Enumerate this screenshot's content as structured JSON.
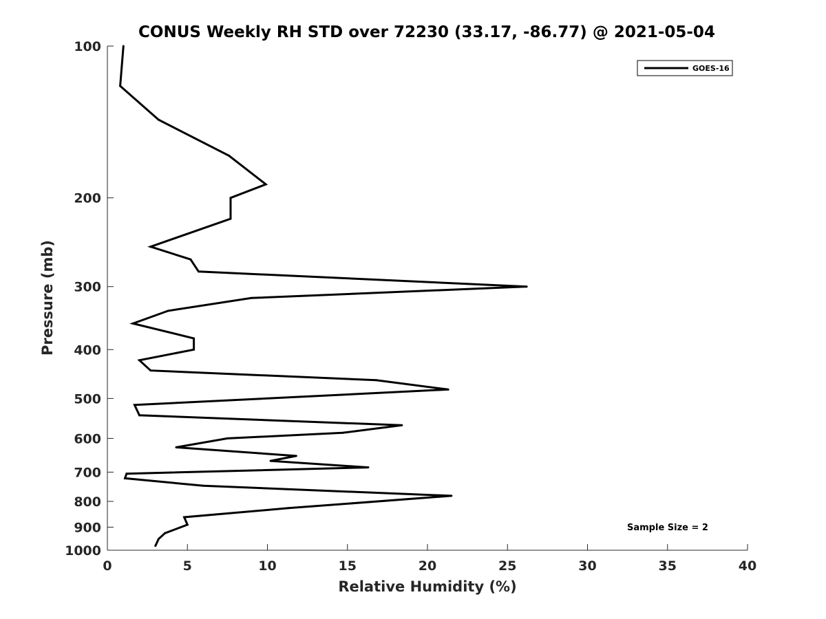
{
  "chart_data": {
    "type": "line",
    "title": "CONUS Weekly RH STD over 72230 (33.17, -86.77) @ 2021-05-04",
    "xlabel": "Relative Humidity (%)",
    "ylabel": "Pressure (mb)",
    "xlim": [
      0,
      40
    ],
    "ylim": [
      100,
      1000
    ],
    "yscale": "log",
    "yreversed": true,
    "xticks": [
      0,
      5,
      10,
      15,
      20,
      25,
      30,
      35,
      40
    ],
    "yticks": [
      100,
      200,
      300,
      400,
      500,
      600,
      700,
      800,
      900,
      1000
    ],
    "grid": false,
    "legend": {
      "position": "top-right",
      "entries": [
        "GOES-16"
      ]
    },
    "annotation": "Sample Size = 2",
    "series": [
      {
        "name": "GOES-16",
        "color": "#000000",
        "points": [
          {
            "x": 1.0,
            "p": 100
          },
          {
            "x": 0.8,
            "p": 120
          },
          {
            "x": 3.2,
            "p": 140
          },
          {
            "x": 7.6,
            "p": 165
          },
          {
            "x": 9.9,
            "p": 188
          },
          {
            "x": 7.7,
            "p": 200
          },
          {
            "x": 7.7,
            "p": 220
          },
          {
            "x": 2.7,
            "p": 250
          },
          {
            "x": 5.2,
            "p": 265
          },
          {
            "x": 5.7,
            "p": 280
          },
          {
            "x": 26.2,
            "p": 300
          },
          {
            "x": 9.0,
            "p": 316
          },
          {
            "x": 3.8,
            "p": 335
          },
          {
            "x": 1.6,
            "p": 355
          },
          {
            "x": 5.4,
            "p": 380
          },
          {
            "x": 5.4,
            "p": 400
          },
          {
            "x": 2.0,
            "p": 420
          },
          {
            "x": 2.7,
            "p": 440
          },
          {
            "x": 16.8,
            "p": 460
          },
          {
            "x": 21.3,
            "p": 480
          },
          {
            "x": 1.7,
            "p": 515
          },
          {
            "x": 2.0,
            "p": 540
          },
          {
            "x": 18.4,
            "p": 565
          },
          {
            "x": 14.7,
            "p": 585
          },
          {
            "x": 7.5,
            "p": 600
          },
          {
            "x": 4.3,
            "p": 625
          },
          {
            "x": 11.8,
            "p": 650
          },
          {
            "x": 10.2,
            "p": 665
          },
          {
            "x": 16.3,
            "p": 685
          },
          {
            "x": 1.2,
            "p": 705
          },
          {
            "x": 1.1,
            "p": 720
          },
          {
            "x": 6.0,
            "p": 745
          },
          {
            "x": 21.5,
            "p": 780
          },
          {
            "x": 11.3,
            "p": 825
          },
          {
            "x": 4.8,
            "p": 860
          },
          {
            "x": 5.0,
            "p": 890
          },
          {
            "x": 3.6,
            "p": 925
          },
          {
            "x": 3.2,
            "p": 950
          },
          {
            "x": 3.0,
            "p": 980
          }
        ]
      }
    ]
  }
}
